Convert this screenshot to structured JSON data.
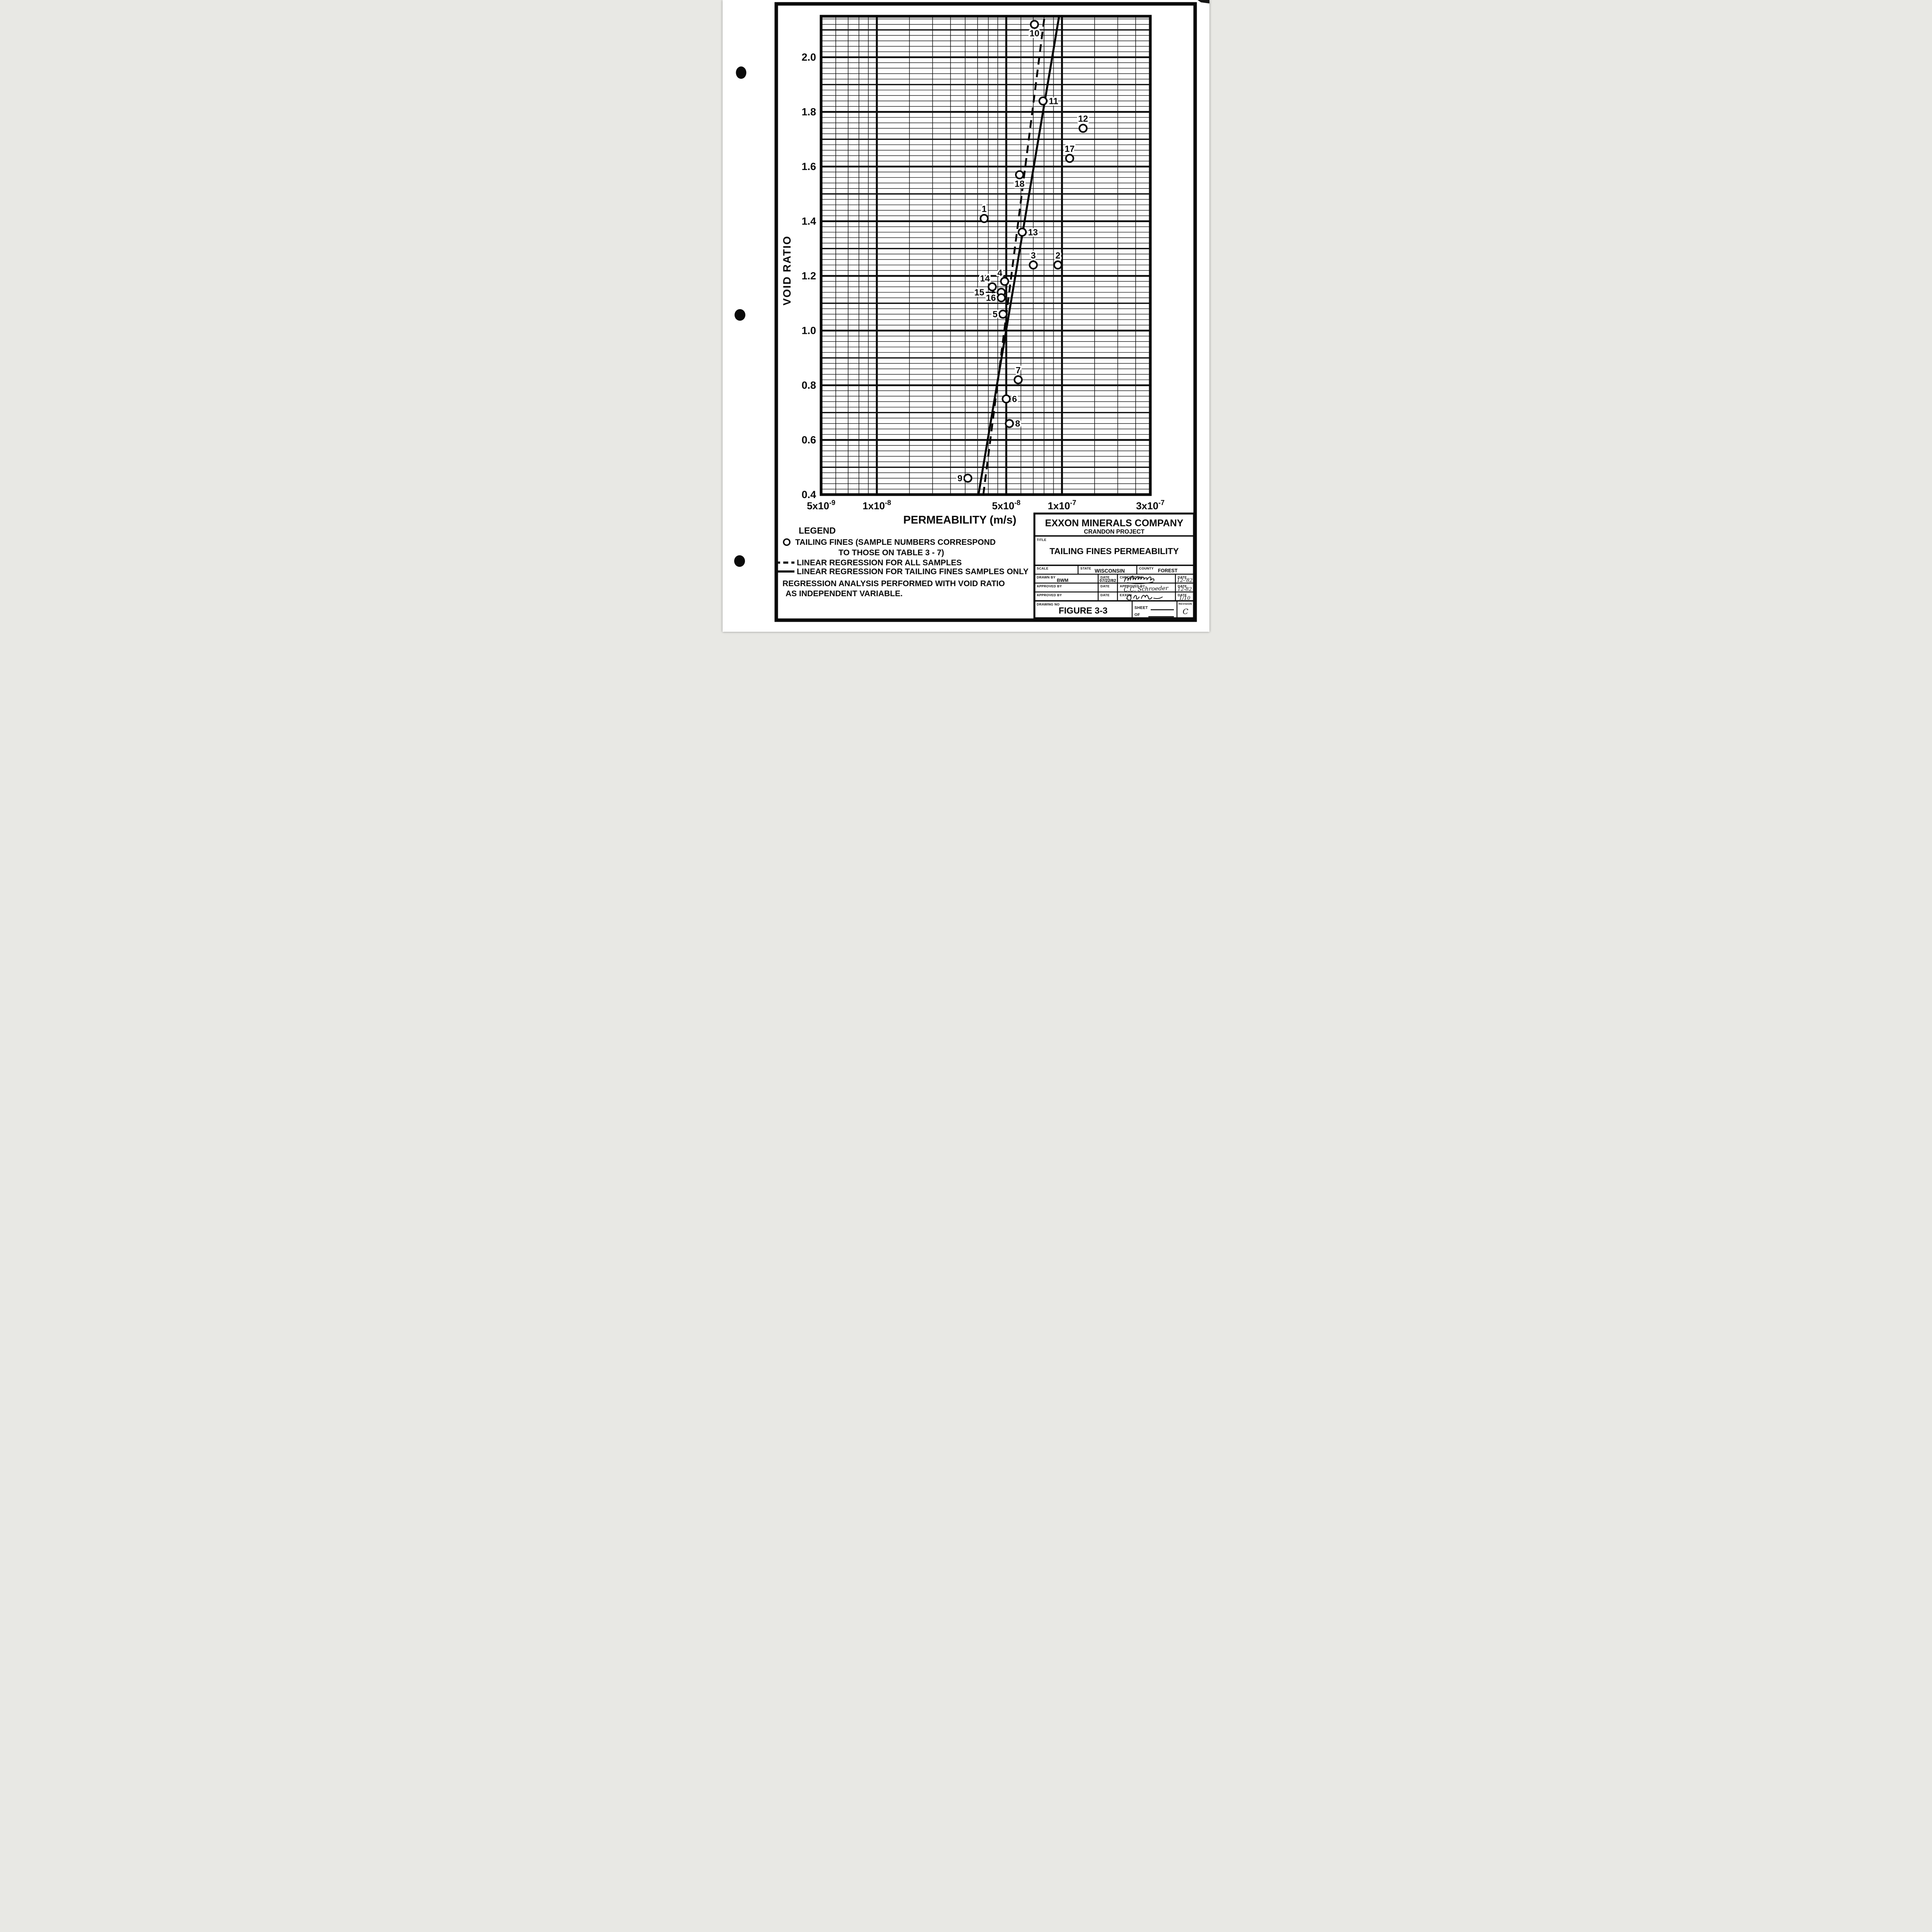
{
  "chart_data": {
    "type": "scatter",
    "title": "TAILING FINES PERMEABILITY",
    "xlabel": "PERMEABILITY (m/s)",
    "ylabel": "VOID RATIO",
    "x_scale": "log",
    "xlim": [
      5e-09,
      3e-07
    ],
    "ylim": [
      0.4,
      2.15
    ],
    "x_ticks": [
      {
        "mantissa": "5x10",
        "exponent": "-9",
        "value": 5e-09
      },
      {
        "mantissa": "1x10",
        "exponent": "-8",
        "value": 1e-08
      },
      {
        "mantissa": "5x10",
        "exponent": "-8",
        "value": 5e-08
      },
      {
        "mantissa": "1x10",
        "exponent": "-7",
        "value": 1e-07
      },
      {
        "mantissa": "3x10",
        "exponent": "-7",
        "value": 3e-07
      }
    ],
    "y_ticks": [
      {
        "text": "2.0",
        "value": 2.0
      },
      {
        "text": "1.8",
        "value": 1.8
      },
      {
        "text": "1.6",
        "value": 1.6
      },
      {
        "text": "1.4",
        "value": 1.4
      },
      {
        "text": "1.2",
        "value": 1.2
      },
      {
        "text": "1.0",
        "value": 1.0
      },
      {
        "text": "0.8",
        "value": 0.8
      },
      {
        "text": "0.6",
        "value": 0.6
      },
      {
        "text": "0.4",
        "value": 0.4
      }
    ],
    "x_grid": {
      "minor": [
        6e-09,
        7e-09,
        8e-09,
        9e-09,
        1.5e-08,
        2e-08,
        2.5e-08,
        3e-08,
        3.5e-08,
        4e-08,
        4.5e-08,
        6e-08,
        7e-08,
        8e-08,
        9e-08,
        1.5e-07,
        2e-07,
        2.5e-07
      ],
      "major": [
        1e-08,
        5e-08,
        1e-07
      ]
    },
    "y_grid": {
      "minor_step": 0.02,
      "medium_step": 0.1,
      "major_step": 0.2
    },
    "points": [
      {
        "sample": "1",
        "k": 3.8e-08,
        "e": 1.41,
        "label_pos": "above"
      },
      {
        "sample": "2",
        "k": 9.5e-08,
        "e": 1.24,
        "label_pos": "above"
      },
      {
        "sample": "3",
        "k": 7e-08,
        "e": 1.24,
        "label_pos": "above"
      },
      {
        "sample": "4",
        "k": 4.9e-08,
        "e": 1.18,
        "label_pos": "aboveleft"
      },
      {
        "sample": "5",
        "k": 4.8e-08,
        "e": 1.06,
        "label_pos": "left"
      },
      {
        "sample": "6",
        "k": 5e-08,
        "e": 0.75,
        "label_pos": "right"
      },
      {
        "sample": "7",
        "k": 5.8e-08,
        "e": 0.82,
        "label_pos": "above"
      },
      {
        "sample": "8",
        "k": 5.2e-08,
        "e": 0.66,
        "label_pos": "right"
      },
      {
        "sample": "9",
        "k": 3.1e-08,
        "e": 0.46,
        "label_pos": "left"
      },
      {
        "sample": "10",
        "k": 7.1e-08,
        "e": 2.12,
        "label_pos": "below"
      },
      {
        "sample": "11",
        "k": 7.9e-08,
        "e": 1.84,
        "label_pos": "right"
      },
      {
        "sample": "12",
        "k": 1.3e-07,
        "e": 1.74,
        "label_pos": "above"
      },
      {
        "sample": "13",
        "k": 6.1e-08,
        "e": 1.36,
        "label_pos": "right"
      },
      {
        "sample": "14",
        "k": 4.2e-08,
        "e": 1.16,
        "label_pos": "aboveleft"
      },
      {
        "sample": "15",
        "k": 4.7e-08,
        "e": 1.14,
        "label_pos": "farleft"
      },
      {
        "sample": "16",
        "k": 4.7e-08,
        "e": 1.12,
        "label_pos": "left"
      },
      {
        "sample": "17",
        "k": 1.1e-07,
        "e": 1.63,
        "label_pos": "above"
      },
      {
        "sample": "18",
        "k": 5.9e-08,
        "e": 1.57,
        "label_pos": "below"
      }
    ],
    "regression_lines": [
      {
        "id": "all-samples",
        "label": "LINEAR REGRESSION FOR ALL SAMPLES",
        "style": "dashed",
        "from": {
          "k": 3.76e-08,
          "e": 0.4
        },
        "to": {
          "k": 8.05e-08,
          "e": 2.15
        }
      },
      {
        "id": "tailing-fines-only",
        "label": "LINEAR REGRESSION FOR TAILING FINES SAMPLES ONLY",
        "style": "solid",
        "from": {
          "k": 3.54e-08,
          "e": 0.4
        },
        "to": {
          "k": 9.65e-08,
          "e": 2.15
        }
      }
    ]
  },
  "legend": {
    "heading": "LEGEND",
    "tailing_fines_line1": "TAILING FINES (SAMPLE NUMBERS CORRESPOND",
    "tailing_fines_line2": "TO THOSE ON TABLE 3 - 7)",
    "dashed_item": "LINEAR REGRESSION FOR ALL SAMPLES",
    "solid_item": "LINEAR REGRESSION FOR TAILING FINES SAMPLES ONLY",
    "note_line1": "REGRESSION ANALYSIS PERFORMED WITH VOID RATIO",
    "note_line2": "AS INDEPENDENT VARIABLE."
  },
  "title_block": {
    "company": "EXXON MINERALS COMPANY",
    "project": "CRANDON PROJECT",
    "title_label": "TITLE",
    "title": "TAILING FINES PERMEABILITY",
    "scale_label": "SCALE",
    "scale_value": "",
    "state_label": "STATE",
    "state_value": "WISCONSIN",
    "county_label": "COUNTY",
    "county_value": "FOREST",
    "drawn_by_label": "DRAWN BY",
    "drawn_by_value": "BWM",
    "date_label": "DATE",
    "drawn_date": "07/22/82",
    "checked_by_label": "CHECKED BY",
    "checked_by_signature": "illegible",
    "checked_date": "12-'82",
    "approved_by_label": "APPROVED BY",
    "approved1_value": "",
    "approved1_date": "",
    "approved2_value": "C.C. Schroeder",
    "approved2_date": "12-82",
    "exxon_label": "EXXON",
    "exxon_signature": "illegible",
    "exxon_date": "1/10",
    "drawing_no_label": "DRAWING NO",
    "figure_no": "FIGURE 3-3",
    "sheet_label": "SHEET",
    "of_label": "OF",
    "revision_label": "REVISION No",
    "revision_value": "C"
  }
}
